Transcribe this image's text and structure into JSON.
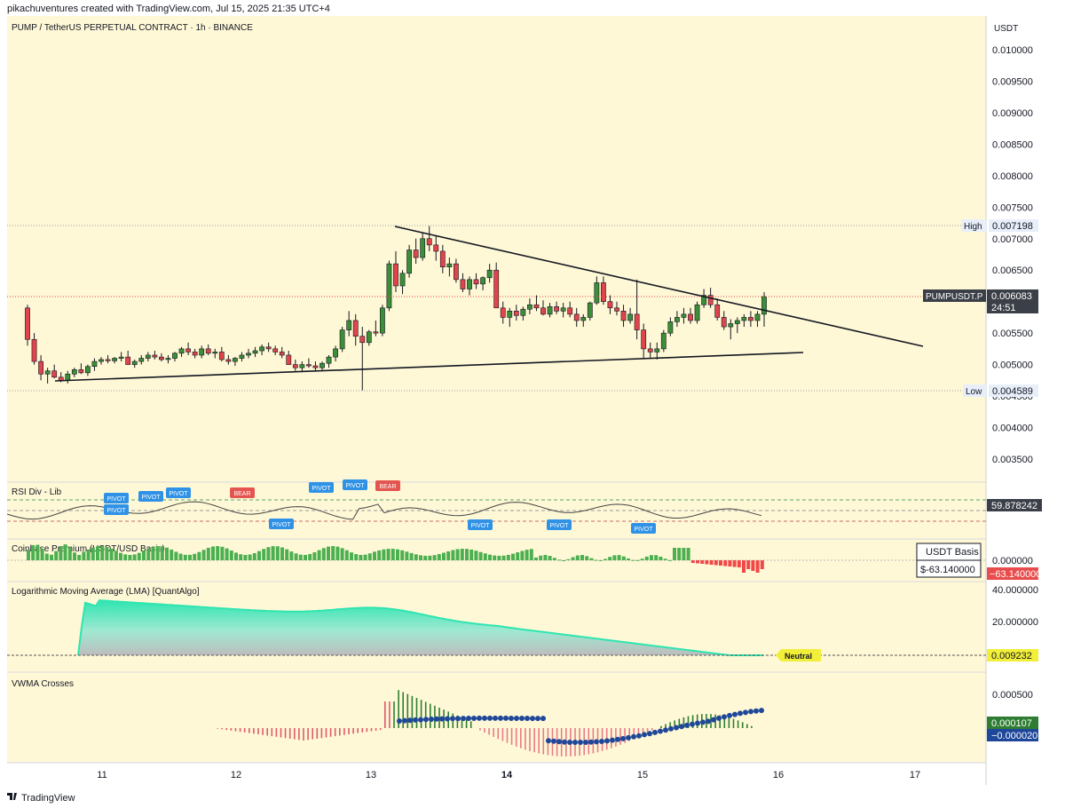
{
  "header": {
    "credit": "pikachuventures created with TradingView.com, Jul 15, 2025 21:35 UTC+4",
    "symbol_title": "PUMP / TetherUS PERPETUAL CONTRACT · 1h · BINANCE",
    "currency": "USDT"
  },
  "footer": {
    "brand": "TradingView"
  },
  "price_axis": {
    "ticks": [
      "0.010000",
      "0.009500",
      "0.009000",
      "0.008500",
      "0.008000",
      "0.007500",
      "0.007000",
      "0.006500",
      "0.006000",
      "0.005500",
      "0.005000",
      "0.004500",
      "0.004000",
      "0.003500"
    ]
  },
  "time_axis": {
    "ticks": [
      "11",
      "12",
      "13",
      "14",
      "15",
      "16",
      "17"
    ]
  },
  "markers": {
    "high_label": "High",
    "high_value": "0.007198",
    "low_label": "Low",
    "low_value": "0.004589",
    "symbol_tag": "PUMPUSDT.P",
    "last_price": "0.006083",
    "countdown": "24:51"
  },
  "panes": {
    "rsi": {
      "title": "RSI Div - Lib",
      "value": "59.878242",
      "pivot_label": "PIVOT",
      "bear_label": "BEAR"
    },
    "coinbase": {
      "title": "Coinbase Premium (USDT/USD Basis)",
      "legend_title": "USDT Basis",
      "legend_value": "$-63.140000",
      "tick_zero": "0.000000",
      "value": "−63.140000"
    },
    "lma": {
      "title": "Logarithmic Moving Average (LMA) [QuantAlgo]",
      "tick_40": "40.000000",
      "tick_20": "20.000000",
      "value": "0.009232",
      "state": "Neutral"
    },
    "vwma": {
      "title": "VWMA Crosses",
      "tick": "0.000500",
      "value_a": "0.000107",
      "value_b": "−0.000020"
    }
  },
  "colors": {
    "up": "#3c8f38",
    "down": "#e0454c",
    "bg": "#fff8d6",
    "axis_bg": "#ffffff",
    "pivot": "#2f92e6",
    "bear": "#e4554f",
    "lma": "#2ee5b0",
    "vwma_line": "#1e4799",
    "vwma_green": "#2f7d32",
    "vwma_red": "#e05a6a"
  },
  "chart_data": {
    "type": "candlestick",
    "symbol": "PUMPUSDT.P",
    "interval": "1h",
    "ylim": [
      0.0031,
      0.0104
    ],
    "x_ticks": [
      "11",
      "12",
      "13",
      "14",
      "15",
      "16",
      "17"
    ],
    "high": 0.007198,
    "low": 0.004589,
    "last": 0.006083,
    "trendlines": [
      {
        "from": [
          "13 (approx 04:00)",
          0.00721
        ],
        "to": [
          "16 (approx 22:00)",
          0.00529
        ]
      },
      {
        "from": [
          "10 (approx 20:00)",
          0.00473
        ],
        "to": [
          "16 (approx 06:00)",
          0.00518
        ]
      }
    ],
    "candles_ohlc": [
      [
        0.0059,
        0.00595,
        0.0053,
        0.0054
      ],
      [
        0.0054,
        0.0055,
        0.005,
        0.00505
      ],
      [
        0.00505,
        0.00515,
        0.00475,
        0.00485
      ],
      [
        0.00485,
        0.00495,
        0.0047,
        0.0049
      ],
      [
        0.0049,
        0.005,
        0.00478,
        0.0048
      ],
      [
        0.0048,
        0.00488,
        0.00472,
        0.00475
      ],
      [
        0.00475,
        0.0049,
        0.0047,
        0.00485
      ],
      [
        0.00485,
        0.00495,
        0.0048,
        0.00492
      ],
      [
        0.00492,
        0.00502,
        0.00485,
        0.00487
      ],
      [
        0.00487,
        0.005,
        0.00482,
        0.00497
      ],
      [
        0.00497,
        0.0051,
        0.0049,
        0.00505
      ],
      [
        0.00505,
        0.00512,
        0.005,
        0.00508
      ],
      [
        0.00508,
        0.00515,
        0.00502,
        0.00506
      ],
      [
        0.00506,
        0.00512,
        0.00502,
        0.0051
      ],
      [
        0.0051,
        0.0052,
        0.00505,
        0.00512
      ],
      [
        0.00512,
        0.00522,
        0.00505,
        0.005
      ],
      [
        0.005,
        0.00508,
        0.00495,
        0.00505
      ],
      [
        0.00505,
        0.00515,
        0.005,
        0.0051
      ],
      [
        0.0051,
        0.0052,
        0.00505,
        0.00515
      ],
      [
        0.00515,
        0.00522,
        0.00508,
        0.00512
      ],
      [
        0.00512,
        0.00518,
        0.00505,
        0.00508
      ],
      [
        0.00508,
        0.00515,
        0.00502,
        0.0051
      ],
      [
        0.0051,
        0.0052,
        0.00505,
        0.00518
      ],
      [
        0.00518,
        0.00528,
        0.00512,
        0.00525
      ],
      [
        0.00525,
        0.00535,
        0.00515,
        0.0052
      ],
      [
        0.0052,
        0.00525,
        0.0051,
        0.00515
      ],
      [
        0.00515,
        0.0053,
        0.0051,
        0.00525
      ],
      [
        0.00525,
        0.00532,
        0.00515,
        0.00518
      ],
      [
        0.00518,
        0.00525,
        0.0051,
        0.0052
      ],
      [
        0.0052,
        0.00528,
        0.00505,
        0.00508
      ],
      [
        0.00508,
        0.00515,
        0.005,
        0.00505
      ],
      [
        0.00505,
        0.00512,
        0.00498,
        0.0051
      ],
      [
        0.0051,
        0.0052,
        0.00505,
        0.00515
      ],
      [
        0.00515,
        0.00525,
        0.0051,
        0.00518
      ],
      [
        0.00518,
        0.00528,
        0.00512,
        0.00522
      ],
      [
        0.00522,
        0.00532,
        0.00515,
        0.00528
      ],
      [
        0.00528,
        0.00535,
        0.0052,
        0.00525
      ],
      [
        0.00525,
        0.0053,
        0.00515,
        0.0052
      ],
      [
        0.0052,
        0.00528,
        0.0051,
        0.00515
      ],
      [
        0.00515,
        0.00522,
        0.00505,
        0.005
      ],
      [
        0.005,
        0.00508,
        0.0049,
        0.00495
      ],
      [
        0.00495,
        0.00505,
        0.00488,
        0.005
      ],
      [
        0.005,
        0.0051,
        0.00495,
        0.00498
      ],
      [
        0.00498,
        0.00505,
        0.0049,
        0.00495
      ],
      [
        0.00495,
        0.00505,
        0.0049,
        0.00502
      ],
      [
        0.00502,
        0.00515,
        0.00495,
        0.00512
      ],
      [
        0.00512,
        0.0053,
        0.00505,
        0.00525
      ],
      [
        0.00525,
        0.0056,
        0.0052,
        0.00555
      ],
      [
        0.00555,
        0.00585,
        0.00545,
        0.0057
      ],
      [
        0.0057,
        0.0058,
        0.0053,
        0.00545
      ],
      [
        0.00545,
        0.0056,
        0.00459,
        0.00535
      ],
      [
        0.00535,
        0.00555,
        0.0053,
        0.00552
      ],
      [
        0.00552,
        0.0057,
        0.00545,
        0.0055
      ],
      [
        0.0055,
        0.00595,
        0.00545,
        0.0059
      ],
      [
        0.0059,
        0.00665,
        0.00585,
        0.0066
      ],
      [
        0.0066,
        0.0068,
        0.00615,
        0.00625
      ],
      [
        0.00625,
        0.0065,
        0.00612,
        0.00645
      ],
      [
        0.00645,
        0.0069,
        0.00638,
        0.00682
      ],
      [
        0.00682,
        0.007,
        0.0066,
        0.0067
      ],
      [
        0.0067,
        0.0071,
        0.00665,
        0.007
      ],
      [
        0.007,
        0.0072,
        0.0068,
        0.0069
      ],
      [
        0.0069,
        0.00705,
        0.00665,
        0.0068
      ],
      [
        0.0068,
        0.0069,
        0.00645,
        0.00655
      ],
      [
        0.00655,
        0.0067,
        0.0064,
        0.0066
      ],
      [
        0.0066,
        0.00668,
        0.0063,
        0.00635
      ],
      [
        0.00635,
        0.00645,
        0.00615,
        0.0062
      ],
      [
        0.0062,
        0.0064,
        0.0061,
        0.00635
      ],
      [
        0.00635,
        0.00645,
        0.0062,
        0.00628
      ],
      [
        0.00628,
        0.0064,
        0.00618,
        0.00638
      ],
      [
        0.00638,
        0.0066,
        0.0063,
        0.0065
      ],
      [
        0.0065,
        0.00662,
        0.0062,
        0.0059
      ],
      [
        0.0059,
        0.006,
        0.00565,
        0.00575
      ],
      [
        0.00575,
        0.0059,
        0.0056,
        0.00585
      ],
      [
        0.00585,
        0.00595,
        0.0057,
        0.00578
      ],
      [
        0.00578,
        0.00592,
        0.0057,
        0.00588
      ],
      [
        0.00588,
        0.00605,
        0.0058,
        0.00595
      ],
      [
        0.00595,
        0.0061,
        0.00585,
        0.0059
      ],
      [
        0.0059,
        0.00602,
        0.00578,
        0.0058
      ],
      [
        0.0058,
        0.00598,
        0.00575,
        0.00592
      ],
      [
        0.00592,
        0.006,
        0.0058,
        0.00585
      ],
      [
        0.00585,
        0.00598,
        0.00575,
        0.0059
      ],
      [
        0.0059,
        0.006,
        0.00575,
        0.0058
      ],
      [
        0.0058,
        0.0059,
        0.0056,
        0.0057
      ],
      [
        0.0057,
        0.0058,
        0.0056,
        0.00575
      ],
      [
        0.00575,
        0.006,
        0.0057,
        0.00598
      ],
      [
        0.00598,
        0.0064,
        0.00595,
        0.0063
      ],
      [
        0.0063,
        0.0064,
        0.00595,
        0.006
      ],
      [
        0.006,
        0.0061,
        0.0058,
        0.0059
      ],
      [
        0.0059,
        0.006,
        0.00578,
        0.00585
      ],
      [
        0.00585,
        0.00595,
        0.0056,
        0.0057
      ],
      [
        0.0057,
        0.0059,
        0.00565,
        0.0058
      ],
      [
        0.0058,
        0.00635,
        0.0054,
        0.00555
      ],
      [
        0.00555,
        0.00565,
        0.0051,
        0.00525
      ],
      [
        0.00525,
        0.00535,
        0.0051,
        0.0052
      ],
      [
        0.0052,
        0.00535,
        0.00508,
        0.00525
      ],
      [
        0.00525,
        0.00555,
        0.0052,
        0.0055
      ],
      [
        0.0055,
        0.00575,
        0.00545,
        0.00568
      ],
      [
        0.00568,
        0.00585,
        0.0056,
        0.00575
      ],
      [
        0.00575,
        0.0059,
        0.00565,
        0.0058
      ],
      [
        0.0058,
        0.0059,
        0.00565,
        0.0057
      ],
      [
        0.0057,
        0.006,
        0.00565,
        0.00595
      ],
      [
        0.00595,
        0.0062,
        0.0059,
        0.0061
      ],
      [
        0.0061,
        0.00622,
        0.0059,
        0.00595
      ],
      [
        0.00595,
        0.00605,
        0.0057,
        0.00575
      ],
      [
        0.00575,
        0.00585,
        0.00555,
        0.0056
      ],
      [
        0.0056,
        0.00572,
        0.0054,
        0.00565
      ],
      [
        0.00565,
        0.00575,
        0.0055,
        0.0057
      ],
      [
        0.0057,
        0.0058,
        0.0056,
        0.00575
      ],
      [
        0.00575,
        0.00585,
        0.0056,
        0.0057
      ],
      [
        0.0057,
        0.00585,
        0.0056,
        0.0058
      ],
      [
        0.0058,
        0.00615,
        0.0056,
        0.00608
      ]
    ],
    "panes": {
      "rsi": {
        "last": 59.878242
      },
      "coinbase_premium": {
        "last": -63.14
      },
      "lma": {
        "ticks": [
          40,
          20
        ],
        "last": 0.009232
      },
      "vwma_crosses": {
        "tick": 0.0005,
        "last_a": 0.000107,
        "last_b": -2e-05
      }
    }
  }
}
